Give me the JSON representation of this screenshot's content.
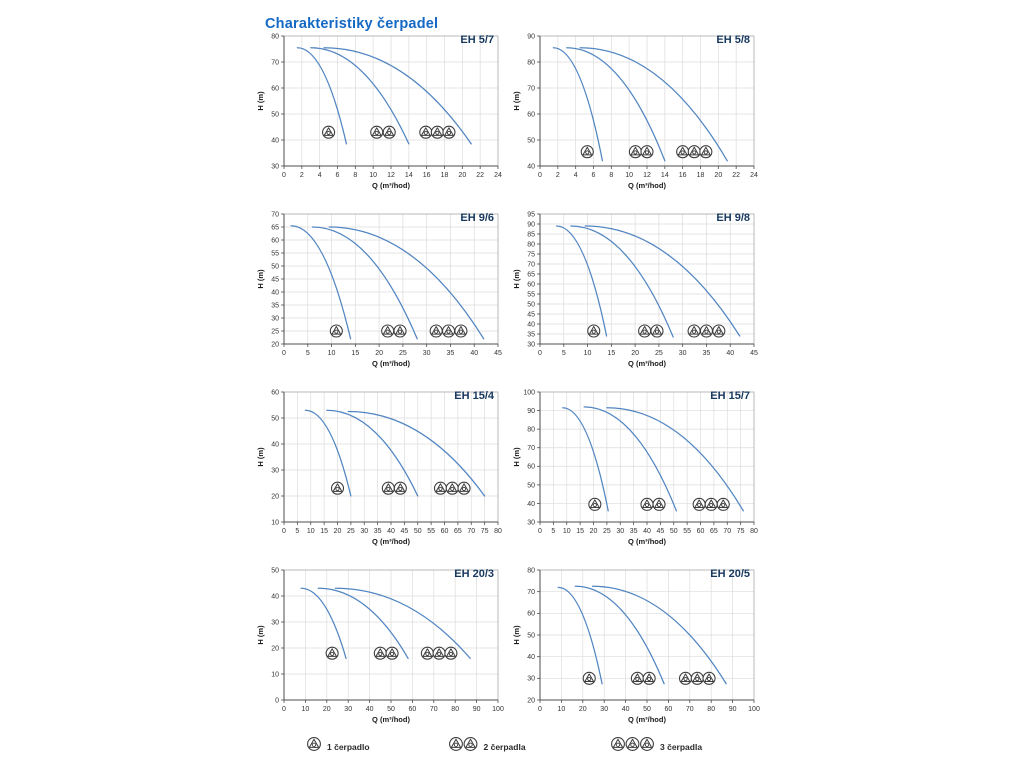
{
  "page_title": "Charakteristiky čerpadel",
  "colors": {
    "title": "#1469c4",
    "chart_label": "#17375e",
    "curve": "#5185c2",
    "grid": "#dcdcdc",
    "plot_border": "#b0b0b0",
    "axis": "#4d4d4d",
    "tick_text": "#333333",
    "icon_stroke": "#3d3d3d"
  },
  "legend": [
    {
      "icon_count": 1,
      "label": "1 čerpadlo",
      "x": 306
    },
    {
      "icon_count": 2,
      "label": "2 čerpadla",
      "x": 448
    },
    {
      "icon_count": 3,
      "label": "3 čerpadla",
      "x": 610
    }
  ],
  "chart_data": [
    {
      "type": "line",
      "title": "EH 5/7",
      "xlabel": "Q (m³/hod)",
      "ylabel": "H (m)",
      "xlim": [
        0,
        24
      ],
      "xstep": 2,
      "ylim": [
        30,
        80
      ],
      "ystep": 10,
      "grid": true,
      "series": [
        {
          "name": "1 čerpadlo",
          "points": [
            [
              1.5,
              75.5
            ],
            [
              7,
              38.5
            ]
          ]
        },
        {
          "name": "2 čerpadla",
          "points": [
            [
              3,
              75.5
            ],
            [
              14,
              38.5
            ]
          ]
        },
        {
          "name": "3 čerpadla",
          "points": [
            [
              4.5,
              75.5
            ],
            [
              21,
              38.5
            ]
          ]
        }
      ],
      "pump_icons": {
        "h": 43,
        "groups": [
          [
            5
          ],
          [
            10.4,
            11.8
          ],
          [
            15.9,
            17.2,
            18.5
          ]
        ]
      }
    },
    {
      "type": "line",
      "title": "EH 5/8",
      "xlabel": "Q (m³/hod)",
      "ylabel": "H (m)",
      "xlim": [
        0,
        24
      ],
      "xstep": 2,
      "ylim": [
        40,
        90
      ],
      "ystep": 10,
      "grid": true,
      "series": [
        {
          "name": "1 čerpadlo",
          "points": [
            [
              1.5,
              85.5
            ],
            [
              7,
              42
            ]
          ]
        },
        {
          "name": "2 čerpadla",
          "points": [
            [
              3,
              85.5
            ],
            [
              14,
              42
            ]
          ]
        },
        {
          "name": "3 čerpadla",
          "points": [
            [
              4.5,
              85.5
            ],
            [
              21,
              42
            ]
          ]
        }
      ],
      "pump_icons": {
        "h": 45.5,
        "groups": [
          [
            5.3
          ],
          [
            10.7,
            12
          ],
          [
            16,
            17.3,
            18.6
          ]
        ]
      }
    },
    {
      "type": "line",
      "title": "EH 9/6",
      "xlabel": "Q (m³/hod)",
      "ylabel": "H (m)",
      "xlim": [
        0,
        45
      ],
      "xstep": 5,
      "ylim": [
        20,
        70
      ],
      "ystep": 5,
      "grid": true,
      "series": [
        {
          "name": "1 čerpadlo",
          "points": [
            [
              1.5,
              65.5
            ],
            [
              14,
              22
            ]
          ]
        },
        {
          "name": "2 čerpadla",
          "points": [
            [
              6,
              65
            ],
            [
              28,
              22
            ]
          ]
        },
        {
          "name": "3 čerpadla",
          "points": [
            [
              9.5,
              65
            ],
            [
              42,
              22
            ]
          ]
        }
      ],
      "pump_icons": {
        "h": 25,
        "groups": [
          [
            11
          ],
          [
            21.8,
            24.4
          ],
          [
            32,
            34.6,
            37.2
          ]
        ]
      }
    },
    {
      "type": "line",
      "title": "EH 9/8",
      "xlabel": "Q (m³/hod)",
      "ylabel": "H (m)",
      "xlim": [
        0,
        45
      ],
      "xstep": 5,
      "ylim": [
        30,
        95
      ],
      "ystep": 5,
      "grid": true,
      "series": [
        {
          "name": "1 čerpadlo",
          "points": [
            [
              3.5,
              89
            ],
            [
              14,
              34
            ]
          ]
        },
        {
          "name": "2 čerpadla",
          "points": [
            [
              6.5,
              89
            ],
            [
              28,
              33.5
            ]
          ]
        },
        {
          "name": "3 čerpadla",
          "points": [
            [
              9.5,
              89
            ],
            [
              42,
              34
            ]
          ]
        }
      ],
      "pump_icons": {
        "h": 36.5,
        "groups": [
          [
            11.3
          ],
          [
            22,
            24.6
          ],
          [
            32.4,
            35,
            37.6
          ]
        ]
      }
    },
    {
      "type": "line",
      "title": "EH 15/4",
      "xlabel": "Q (m³/hod)",
      "ylabel": "H (m)",
      "xlim": [
        0,
        80
      ],
      "xstep": 5,
      "ylim": [
        10,
        60
      ],
      "ystep": 10,
      "grid": true,
      "series": [
        {
          "name": "1 čerpadlo",
          "points": [
            [
              8,
              53
            ],
            [
              25,
              20
            ]
          ]
        },
        {
          "name": "2 čerpadla",
          "points": [
            [
              16,
              53
            ],
            [
              50,
              20
            ]
          ]
        },
        {
          "name": "3 čerpadla",
          "points": [
            [
              24,
              52.5
            ],
            [
              75,
              20
            ]
          ]
        }
      ],
      "pump_icons": {
        "h": 23,
        "groups": [
          [
            20
          ],
          [
            39,
            43.5
          ],
          [
            58.5,
            62.9,
            67.3
          ]
        ]
      }
    },
    {
      "type": "line",
      "title": "EH 15/7",
      "xlabel": "Q (m³/hod)",
      "ylabel": "H (m)",
      "xlim": [
        0,
        80
      ],
      "xstep": 5,
      "ylim": [
        30,
        100
      ],
      "ystep": 10,
      "grid": true,
      "series": [
        {
          "name": "1 čerpadlo",
          "points": [
            [
              8.5,
              91.5
            ],
            [
              25.5,
              36
            ]
          ]
        },
        {
          "name": "2 čerpadla",
          "points": [
            [
              16.5,
              92
            ],
            [
              51,
              36
            ]
          ]
        },
        {
          "name": "3 čerpadla",
          "points": [
            [
              25,
              91.5
            ],
            [
              76,
              36
            ]
          ]
        }
      ],
      "pump_icons": {
        "h": 39.5,
        "groups": [
          [
            20.5
          ],
          [
            40,
            44.5
          ],
          [
            59.5,
            64,
            68.5
          ]
        ]
      }
    },
    {
      "type": "line",
      "title": "EH 20/3",
      "xlabel": "Q (m³/hod)",
      "ylabel": "H (m)",
      "xlim": [
        0,
        100
      ],
      "xstep": 10,
      "ylim": [
        0,
        50
      ],
      "ystep": 10,
      "grid": true,
      "series": [
        {
          "name": "1 čerpadlo",
          "points": [
            [
              8,
              43
            ],
            [
              29,
              16
            ]
          ]
        },
        {
          "name": "2 čerpadla",
          "points": [
            [
              16,
              43
            ],
            [
              58,
              16
            ]
          ]
        },
        {
          "name": "3 čerpadla",
          "points": [
            [
              24,
              43
            ],
            [
              87,
              16
            ]
          ]
        }
      ],
      "pump_icons": {
        "h": 18,
        "groups": [
          [
            22.5
          ],
          [
            45,
            50.5
          ],
          [
            67,
            72.5,
            78
          ]
        ]
      }
    },
    {
      "type": "line",
      "title": "EH 20/5",
      "xlabel": "Q (m³/hod)",
      "ylabel": "H (m)",
      "xlim": [
        0,
        100
      ],
      "xstep": 10,
      "ylim": [
        20,
        80
      ],
      "ystep": 10,
      "grid": true,
      "series": [
        {
          "name": "1 čerpadlo",
          "points": [
            [
              8.5,
              72
            ],
            [
              29,
              27.5
            ]
          ]
        },
        {
          "name": "2 čerpadla",
          "points": [
            [
              16.5,
              72.5
            ],
            [
              58,
              27.5
            ]
          ]
        },
        {
          "name": "3 čerpadla",
          "points": [
            [
              24.5,
              72.5
            ],
            [
              87,
              27.5
            ]
          ]
        }
      ],
      "pump_icons": {
        "h": 30,
        "groups": [
          [
            23
          ],
          [
            45.5,
            51
          ],
          [
            68,
            73.5,
            79
          ]
        ]
      }
    }
  ]
}
